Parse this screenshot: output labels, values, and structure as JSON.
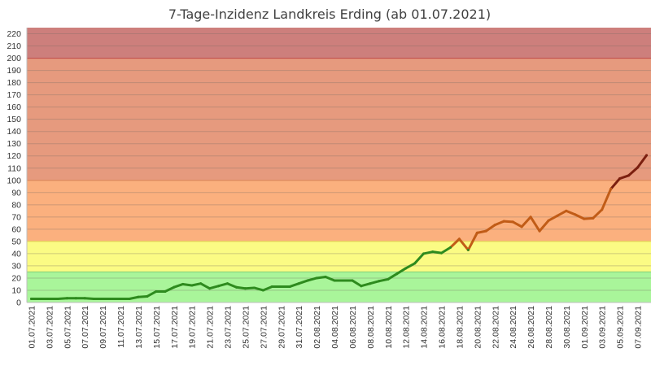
{
  "chart_data": {
    "type": "line",
    "title": "7-Tage-Inzidenz Landkreis Erding (ab 01.07.2021)",
    "xlabel": "",
    "ylabel": "",
    "ylim": [
      0,
      225
    ],
    "y_ticks": [
      0,
      10,
      20,
      30,
      40,
      50,
      60,
      70,
      80,
      90,
      100,
      110,
      120,
      130,
      140,
      150,
      160,
      170,
      180,
      190,
      200,
      210,
      220
    ],
    "grid": true,
    "legend": "none",
    "bands": [
      {
        "from": 0,
        "to": 25,
        "color": "#a9f59a"
      },
      {
        "from": 25,
        "to": 50,
        "color": "#fbfb84"
      },
      {
        "from": 50,
        "to": 100,
        "color": "#fbb07e"
      },
      {
        "from": 100,
        "to": 200,
        "color": "#e69a7e"
      },
      {
        "from": 200,
        "to": 225,
        "color": "#cd7f7c"
      }
    ],
    "band_lines": [
      {
        "value": 25,
        "color": "#86d47a"
      },
      {
        "value": 50,
        "color": "#e6d85a"
      },
      {
        "value": 100,
        "color": "#e08a5e"
      },
      {
        "value": 200,
        "color": "#c0504d"
      }
    ],
    "line_colors": [
      {
        "below": 50,
        "color": "#2e8b1e"
      },
      {
        "below": 100,
        "color": "#c15c17"
      },
      {
        "below": 9999,
        "color": "#7b1f0f"
      }
    ],
    "x_tick_labels": [
      "01.07.2021",
      "03.07.2021",
      "05.07.2021",
      "07.07.2021",
      "09.07.2021",
      "11.07.2021",
      "13.07.2021",
      "15.07.2021",
      "17.07.2021",
      "19.07.2021",
      "21.07.2021",
      "23.07.2021",
      "25.07.2021",
      "27.07.2021",
      "29.07.2021",
      "31.07.2021",
      "02.08.2021",
      "04.08.2021",
      "06.08.2021",
      "08.08.2021",
      "10.08.2021",
      "12.08.2021",
      "14.08.2021",
      "16.08.2021",
      "18.08.2021",
      "20.08.2021",
      "22.08.2021",
      "24.08.2021",
      "26.08.2021",
      "28.08.2021",
      "30.08.2021",
      "01.09.2021",
      "03.09.2021",
      "05.09.2021",
      "07.09.2021"
    ],
    "x": [
      "01.07.2021",
      "02.07.2021",
      "03.07.2021",
      "04.07.2021",
      "05.07.2021",
      "06.07.2021",
      "07.07.2021",
      "08.07.2021",
      "09.07.2021",
      "10.07.2021",
      "11.07.2021",
      "12.07.2021",
      "13.07.2021",
      "14.07.2021",
      "15.07.2021",
      "16.07.2021",
      "17.07.2021",
      "18.07.2021",
      "19.07.2021",
      "20.07.2021",
      "21.07.2021",
      "22.07.2021",
      "23.07.2021",
      "24.07.2021",
      "25.07.2021",
      "26.07.2021",
      "27.07.2021",
      "28.07.2021",
      "29.07.2021",
      "30.07.2021",
      "31.07.2021",
      "01.08.2021",
      "02.08.2021",
      "03.08.2021",
      "04.08.2021",
      "05.08.2021",
      "06.08.2021",
      "07.08.2021",
      "08.08.2021",
      "09.08.2021",
      "10.08.2021",
      "11.08.2021",
      "12.08.2021",
      "13.08.2021",
      "14.08.2021",
      "15.08.2021",
      "16.08.2021",
      "17.08.2021",
      "18.08.2021",
      "19.08.2021",
      "20.08.2021",
      "21.08.2021",
      "22.08.2021",
      "23.08.2021",
      "24.08.2021",
      "25.08.2021",
      "26.08.2021",
      "27.08.2021",
      "28.08.2021",
      "29.08.2021",
      "30.08.2021",
      "31.08.2021",
      "01.09.2021",
      "02.09.2021",
      "03.09.2021",
      "04.09.2021",
      "05.09.2021",
      "06.09.2021",
      "07.09.2021",
      "08.09.2021"
    ],
    "values": [
      3,
      3,
      3,
      3,
      3.5,
      3.5,
      3.5,
      3,
      3,
      3,
      3,
      3,
      4.5,
      5,
      9,
      9,
      12.5,
      15,
      14,
      15.5,
      11.5,
      13.5,
      15.5,
      12.5,
      11.5,
      12,
      10,
      13,
      13,
      13,
      15.5,
      18,
      20,
      21,
      18,
      18,
      18,
      13.5,
      15.5,
      17.5,
      19,
      23.5,
      28,
      32,
      40,
      41.5,
      40.5,
      45,
      52,
      43,
      57,
      58.5,
      63.5,
      66.5,
      66,
      62,
      70,
      58.5,
      67,
      71,
      75,
      72,
      68.5,
      69,
      76,
      93,
      101.5,
      104,
      110.5,
      120.5
    ]
  }
}
